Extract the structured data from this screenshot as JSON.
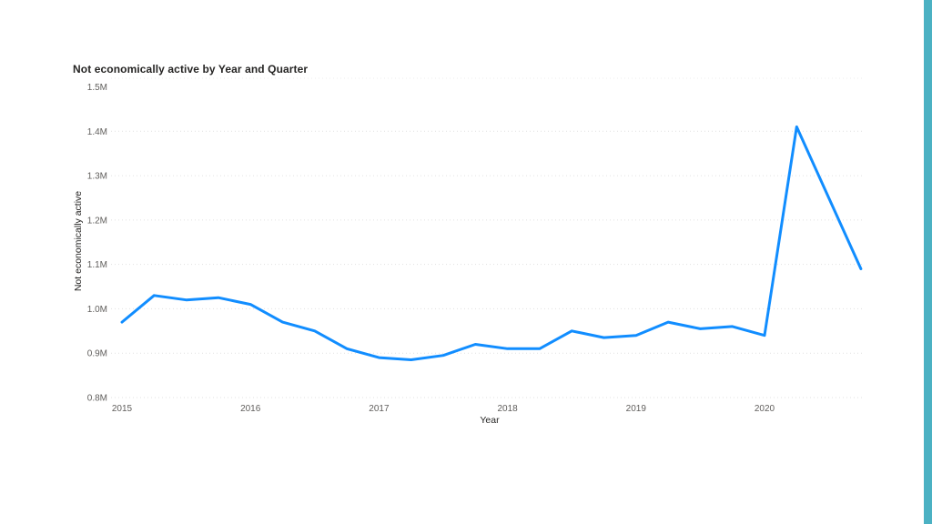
{
  "accent_bar": {
    "color": "#4BB1C3"
  },
  "chart": {
    "title": "Not economically active by Year and Quarter",
    "title_color": "#252423",
    "x_axis_title": "Year",
    "y_axis_title": "Not economically active",
    "axis_title_color": "#252423",
    "tick_label_color": "#605E5C"
  },
  "chart_data": {
    "type": "line",
    "title": "Not economically active by Year and Quarter",
    "xlabel": "Year",
    "ylabel": "Not economically active",
    "legend": "none",
    "grid": "horizontal-dotted",
    "line_color": "#118DFF",
    "grid_color": "#E1E1E1",
    "ylim": [
      0.8,
      1.5
    ],
    "y_unit": "M",
    "y_ticks": [
      1.5,
      1.4,
      1.3,
      1.2,
      1.1,
      1.0,
      0.9,
      0.8
    ],
    "y_tick_labels": [
      "1.5M",
      "1.4M",
      "1.3M",
      "1.2M",
      "1.1M",
      "1.0M",
      "0.9M",
      "0.8M"
    ],
    "x_tick_labels": [
      "2015",
      "2016",
      "2017",
      "2018",
      "2019",
      "2020"
    ],
    "x": [
      "2015 Q1",
      "2015 Q2",
      "2015 Q3",
      "2015 Q4",
      "2016 Q1",
      "2016 Q2",
      "2016 Q3",
      "2016 Q4",
      "2017 Q1",
      "2017 Q2",
      "2017 Q3",
      "2017 Q4",
      "2018 Q1",
      "2018 Q2",
      "2018 Q3",
      "2018 Q4",
      "2019 Q1",
      "2019 Q2",
      "2019 Q3",
      "2019 Q4",
      "2020 Q1",
      "2020 Q2",
      "2020 Q3",
      "2020 Q4"
    ],
    "series": [
      {
        "name": "Not economically active",
        "unit": "millions",
        "values": [
          0.97,
          1.03,
          1.02,
          1.025,
          1.01,
          0.97,
          0.95,
          0.91,
          0.89,
          0.885,
          0.895,
          0.92,
          0.91,
          0.91,
          0.95,
          0.935,
          0.94,
          0.97,
          0.955,
          0.96,
          0.94,
          1.41,
          1.25,
          1.09
        ]
      }
    ]
  }
}
